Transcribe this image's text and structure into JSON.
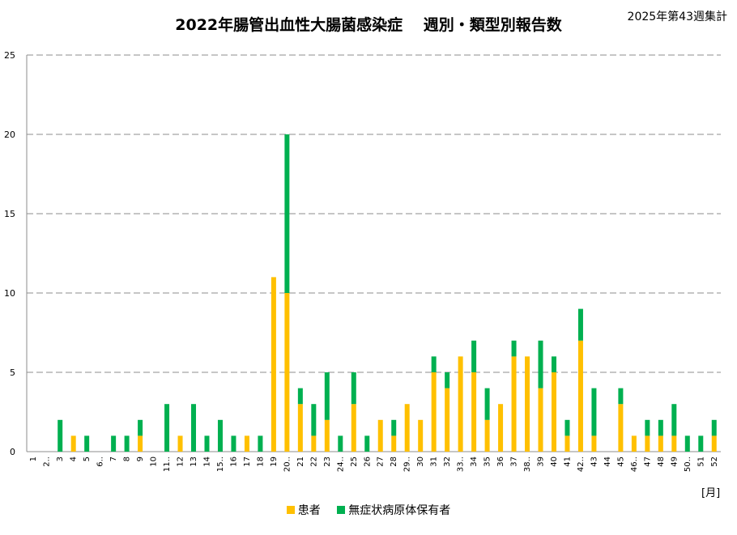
{
  "colors": {
    "patient": "#FFC000",
    "carrier": "#00B050"
  },
  "chart_data": {
    "type": "bar",
    "stacked": true,
    "title": "2022年腸管出血性大腸菌感染症　 週別・類型別報告数",
    "note": "2025年第43週集計",
    "xlabel": "",
    "x_unit": "[月]",
    "ylabel": "",
    "ylim": [
      0,
      25
    ],
    "yticks": [
      0,
      5,
      10,
      15,
      20,
      25
    ],
    "grid": true,
    "legend_position": "bottom",
    "categories": [
      "1",
      "2..",
      "3",
      "4",
      "5",
      "6..",
      "7",
      "8",
      "9",
      "10",
      "11..",
      "12",
      "13",
      "14",
      "15..",
      "16",
      "17",
      "18",
      "19",
      "20..",
      "21",
      "22",
      "23",
      "24..",
      "25",
      "26",
      "27",
      "28",
      "29..",
      "30",
      "31",
      "32",
      "33..",
      "34",
      "35",
      "36",
      "37",
      "38..",
      "39",
      "40",
      "41",
      "42..",
      "43",
      "44",
      "45",
      "46..",
      "47",
      "48",
      "49",
      "50..",
      "51",
      "52"
    ],
    "series": [
      {
        "name": "患者",
        "values": [
          0,
          0,
          0,
          1,
          0,
          0,
          0,
          0,
          1,
          0,
          0,
          1,
          0,
          0,
          0,
          0,
          1,
          0,
          11,
          10,
          3,
          1,
          2,
          0,
          3,
          0,
          2,
          1,
          3,
          2,
          5,
          4,
          6,
          5,
          2,
          3,
          6,
          6,
          4,
          5,
          1,
          7,
          1,
          0,
          3,
          1,
          1,
          1,
          1,
          0,
          0,
          1
        ]
      },
      {
        "name": "無症状病原体保有者",
        "values": [
          0,
          0,
          2,
          0,
          1,
          0,
          1,
          1,
          1,
          0,
          3,
          0,
          3,
          1,
          2,
          1,
          0,
          1,
          0,
          10,
          1,
          2,
          3,
          1,
          2,
          1,
          0,
          1,
          0,
          0,
          1,
          1,
          0,
          2,
          2,
          0,
          1,
          0,
          3,
          1,
          1,
          2,
          3,
          0,
          1,
          0,
          1,
          1,
          2,
          1,
          1,
          1
        ]
      }
    ]
  }
}
